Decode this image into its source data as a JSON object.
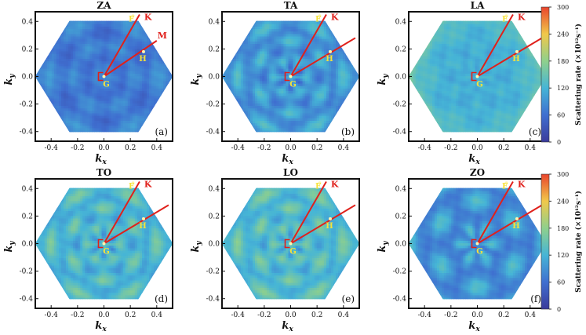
{
  "chart_data": {
    "type": "heatmap",
    "description_units": "scattering rate",
    "panels": [
      {
        "title": "ZA",
        "tag": "(a)",
        "mean_rate": 70,
        "pattern": "diffuse-speckle"
      },
      {
        "title": "TA",
        "tag": "(b)",
        "mean_rate": 95,
        "pattern": "petal-rings"
      },
      {
        "title": "LA",
        "tag": "(c)",
        "mean_rate": 115,
        "pattern": "bright-rim"
      },
      {
        "title": "TO",
        "tag": "(d)",
        "mean_rate": 125,
        "pattern": "petal-rings"
      },
      {
        "title": "LO",
        "tag": "(e)",
        "mean_rate": 130,
        "pattern": "petal-rings"
      },
      {
        "title": "ZO",
        "tag": "(f)",
        "mean_rate": 90,
        "pattern": "dark-lobes"
      }
    ],
    "xlabel": "k",
    "xlabel_sub": "x",
    "ylabel": "k",
    "ylabel_sub": "y",
    "xlim": [
      -0.52,
      0.52
    ],
    "ylim": [
      -0.47,
      0.47
    ],
    "x_ticks": [
      "-0.4",
      "-0.2",
      "0.0",
      "0.2",
      "0.4"
    ],
    "y_ticks": [
      "0.4",
      "0.2",
      "0.0",
      "-0.2",
      "-0.4"
    ],
    "x_tick_values": [
      -0.4,
      -0.2,
      0.0,
      0.2,
      0.4
    ],
    "y_tick_values": [
      0.4,
      0.2,
      0.0,
      -0.2,
      -0.4
    ],
    "brillouin_zone_radius": 0.466,
    "path_points": {
      "G": {
        "label": "G",
        "x": 0.0,
        "y": 0.0
      },
      "H": {
        "label": "H",
        "x": 0.3,
        "y": 0.18
      },
      "F": {
        "label": "F",
        "x": 0.22,
        "y": 0.44
      },
      "K": {
        "label": "K",
        "x": 0.27,
        "y": 0.45
      },
      "M": {
        "label": "M",
        "x": 0.4,
        "y": 0.26
      }
    },
    "gamma_marker": "Γ",
    "colorbar": {
      "label": "Scattering rate (×10¹²s⁻¹)",
      "ticks": [
        "0",
        "60",
        "120",
        "180",
        "240",
        "300"
      ],
      "tick_values": [
        0,
        60,
        120,
        180,
        240,
        300
      ],
      "range": [
        0,
        300
      ],
      "colors": [
        "#3b3b9b",
        "#3f6fd0",
        "#46b5d6",
        "#8fd08c",
        "#f1c84a",
        "#e9452d"
      ]
    },
    "colors": {
      "path_line": "#e0201b",
      "point_label": "#f6e23a",
      "path_label": "#e0201b"
    }
  }
}
